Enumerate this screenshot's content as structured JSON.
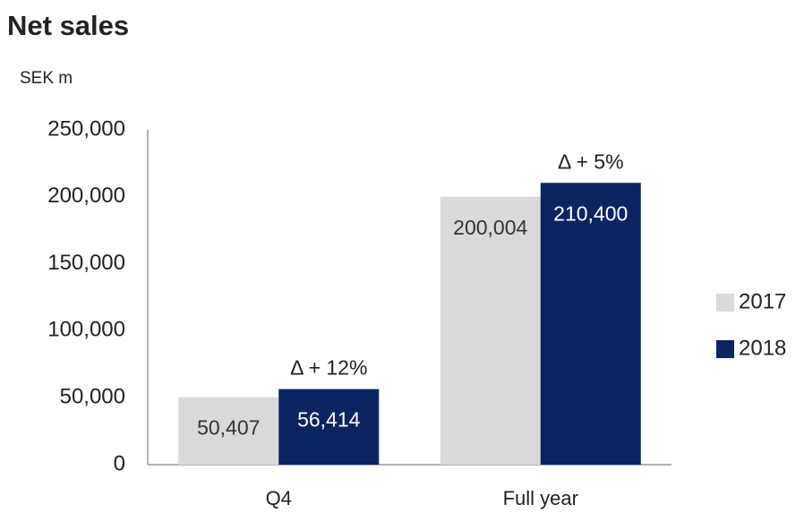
{
  "chart_data": {
    "type": "bar",
    "title": "Net sales",
    "y_label": "SEK m",
    "categories": [
      "Q4",
      "Full year"
    ],
    "series": [
      {
        "name": "2017",
        "color": "#d9d9d9",
        "label_color": "#333333",
        "values": [
          50407,
          200004
        ],
        "value_labels": [
          "50,407",
          "200,004"
        ]
      },
      {
        "name": "2018",
        "color": "#0c2461",
        "label_color": "#ffffff",
        "values": [
          56414,
          210400
        ],
        "value_labels": [
          "56,414",
          "210,400"
        ]
      }
    ],
    "annotations": [
      "Δ + 12%",
      "Δ + 5%"
    ],
    "ylim": [
      0,
      250000
    ],
    "yticks": [
      0,
      {
        "value": 50000,
        "label": "50,000"
      },
      {
        "value": 100000,
        "label": "100,000"
      },
      {
        "value": 150000,
        "label": "150,000"
      },
      {
        "value": 200000,
        "label": "200,000"
      },
      {
        "value": 250000,
        "label": "250,000"
      }
    ],
    "grid": false,
    "legend": "right"
  }
}
